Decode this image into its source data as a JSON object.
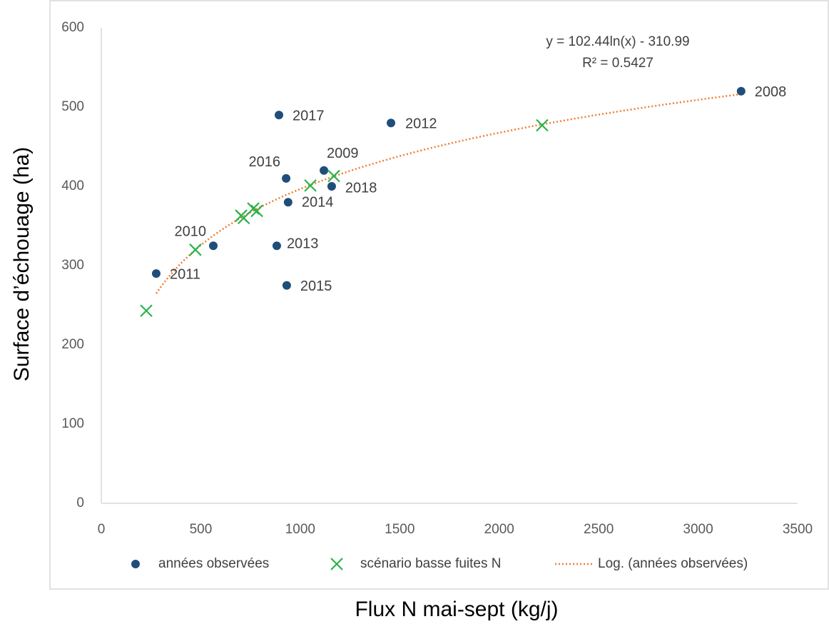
{
  "chart_data": {
    "type": "scatter",
    "x_label": "Flux N mai-sept (kg/j)",
    "y_label": "Surface d’échouage (ha)",
    "xlim": [
      0,
      3500
    ],
    "xticks": [
      0,
      500,
      1000,
      1500,
      2000,
      2500,
      3000,
      3500
    ],
    "ylim": [
      0,
      600
    ],
    "yticks": [
      0,
      100,
      200,
      300,
      400,
      500,
      600
    ],
    "grid": false,
    "legend": "bottom",
    "series": [
      {
        "name": "années observées",
        "color": "#1f4e79",
        "marker": "circle",
        "x": [
          3216,
          1456,
          893,
          1119,
          929,
          1158,
          939,
          563,
          882,
          276,
          932
        ],
        "values": [
          520,
          480,
          490,
          420,
          410,
          400,
          380,
          325,
          325,
          290,
          275
        ],
        "point_labels": [
          "2008",
          "2012",
          "2017",
          "2009",
          "2016",
          "2018",
          "2014",
          "2010",
          "2013",
          "2011",
          "2015"
        ]
      },
      {
        "name": "scénario basse fuites N",
        "color": "#2bb34b",
        "marker": "x",
        "x": [
          226,
          473,
          703,
          716,
          764,
          782,
          1051,
          1169,
          2216
        ],
        "values": [
          243,
          320,
          363,
          360,
          372,
          369,
          401,
          413,
          477
        ]
      }
    ],
    "trendline": {
      "name": "Log. (années observées)",
      "color": "#ed7d31",
      "a": 102.44,
      "b": -310.99,
      "equation": "y = 102.44ln(x) - 310.99",
      "r2": "R² = 0.5427"
    }
  }
}
